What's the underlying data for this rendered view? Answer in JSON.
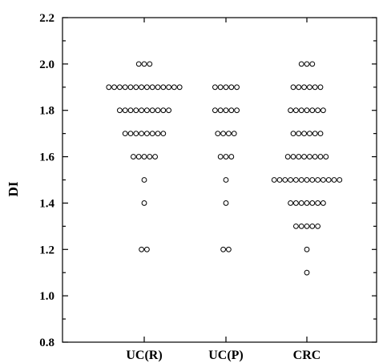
{
  "chart_data": {
    "type": "scatter",
    "title": "",
    "xlabel": "",
    "ylabel": "DI",
    "categories": [
      "UC(R)",
      "UC(P)",
      "CRC"
    ],
    "ylim": [
      0.8,
      2.2
    ],
    "yticks": [
      "0.8",
      "1.0",
      "1.2",
      "1.4",
      "1.6",
      "1.8",
      "2.0",
      "2.2"
    ],
    "grid": false,
    "legend": "none",
    "series": [
      {
        "values": [
          {
            "y": 2.0,
            "count": 3
          },
          {
            "y": 1.9,
            "count": 14
          },
          {
            "y": 1.8,
            "count": 10
          },
          {
            "y": 1.7,
            "count": 8
          },
          {
            "y": 1.6,
            "count": 5
          },
          {
            "y": 1.5,
            "count": 1
          },
          {
            "y": 1.4,
            "count": 1
          },
          {
            "y": 1.2,
            "count": 2
          }
        ]
      },
      {
        "values": [
          {
            "y": 1.9,
            "count": 5
          },
          {
            "y": 1.8,
            "count": 5
          },
          {
            "y": 1.7,
            "count": 4
          },
          {
            "y": 1.6,
            "count": 3
          },
          {
            "y": 1.5,
            "count": 1
          },
          {
            "y": 1.4,
            "count": 1
          },
          {
            "y": 1.2,
            "count": 2
          }
        ]
      },
      {
        "values": [
          {
            "y": 2.0,
            "count": 3
          },
          {
            "y": 1.9,
            "count": 6
          },
          {
            "y": 1.8,
            "count": 7
          },
          {
            "y": 1.7,
            "count": 6
          },
          {
            "y": 1.6,
            "count": 8
          },
          {
            "y": 1.5,
            "count": 13
          },
          {
            "y": 1.4,
            "count": 7
          },
          {
            "y": 1.3,
            "count": 5
          },
          {
            "y": 1.2,
            "count": 1
          },
          {
            "y": 1.1,
            "count": 1
          }
        ]
      }
    ]
  }
}
